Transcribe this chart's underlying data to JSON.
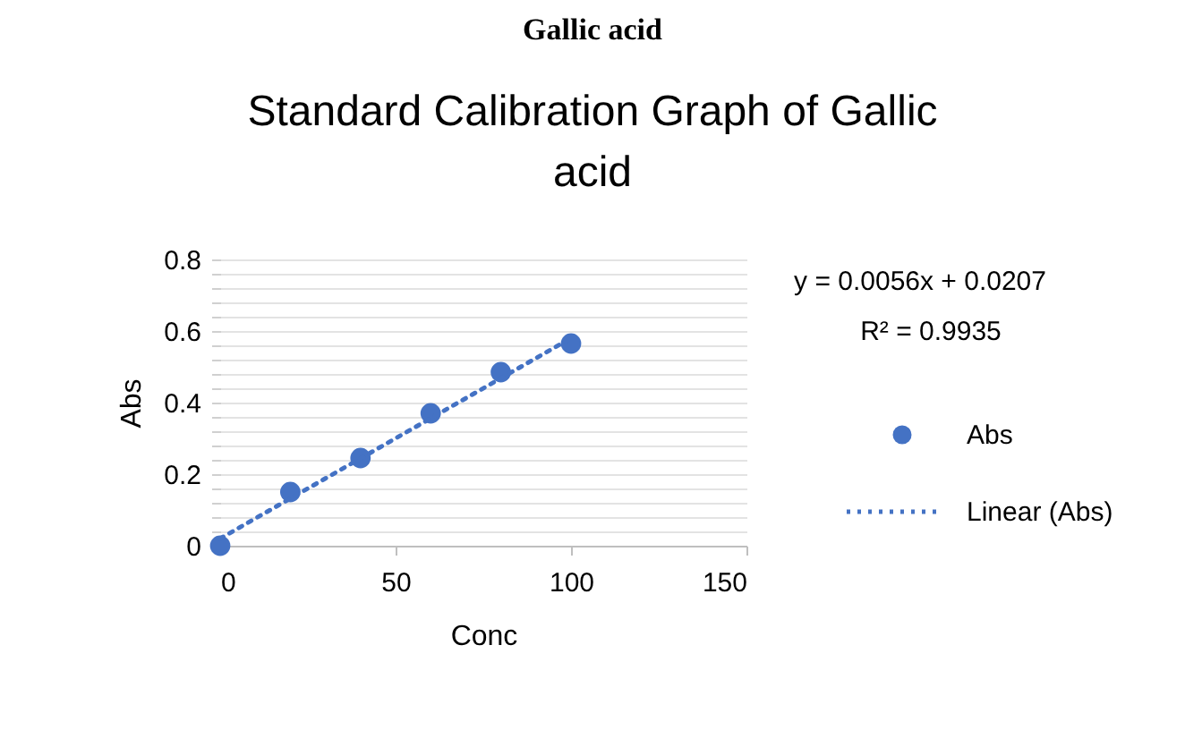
{
  "chart_data": {
    "type": "scatter",
    "title": "Standard Calibration Graph of Gallic acid",
    "xlabel": "Conc",
    "ylabel": "Abs",
    "x": [
      0,
      20,
      40,
      60,
      80,
      100
    ],
    "series": [
      {
        "name": "Abs",
        "color": "#4472c4",
        "marker": "circle",
        "values": [
          0,
          0.15,
          0.245,
          0.37,
          0.485,
          0.565
        ]
      },
      {
        "name": "Linear (Abs)",
        "type": "line",
        "color": "#4472c4",
        "line_style": "dotted",
        "x": [
          0,
          100
        ],
        "values": [
          0.02,
          0.58
        ]
      }
    ],
    "xlim": [
      0,
      150
    ],
    "xticks": [
      0,
      50,
      100,
      150
    ],
    "ylim": [
      0,
      0.8
    ],
    "yticks": [
      0,
      {
        "value": 0.04,
        "label": null
      },
      {
        "value": 0.08,
        "label": null
      },
      {
        "value": 0.12,
        "label": null
      },
      {
        "value": 0.16,
        "label": null
      },
      0.2,
      {
        "value": 0.24,
        "label": null
      },
      {
        "value": 0.28,
        "label": null
      },
      {
        "value": 0.32,
        "label": null
      },
      {
        "value": 0.36,
        "label": null
      },
      0.4,
      {
        "value": 0.44,
        "label": null
      },
      {
        "value": 0.48,
        "label": null
      },
      {
        "value": 0.52,
        "label": null
      },
      {
        "value": 0.56,
        "label": null
      },
      0.6,
      {
        "value": 0.64,
        "label": null
      },
      {
        "value": 0.68,
        "label": null
      },
      {
        "value": 0.72,
        "label": null
      },
      {
        "value": 0.76,
        "label": null
      },
      0.8
    ],
    "grid": "y",
    "legend": "right",
    "annotations": [
      "Gallic acid",
      "y = 0.0056x + 0.0207",
      "R² = 0.9935"
    ]
  }
}
